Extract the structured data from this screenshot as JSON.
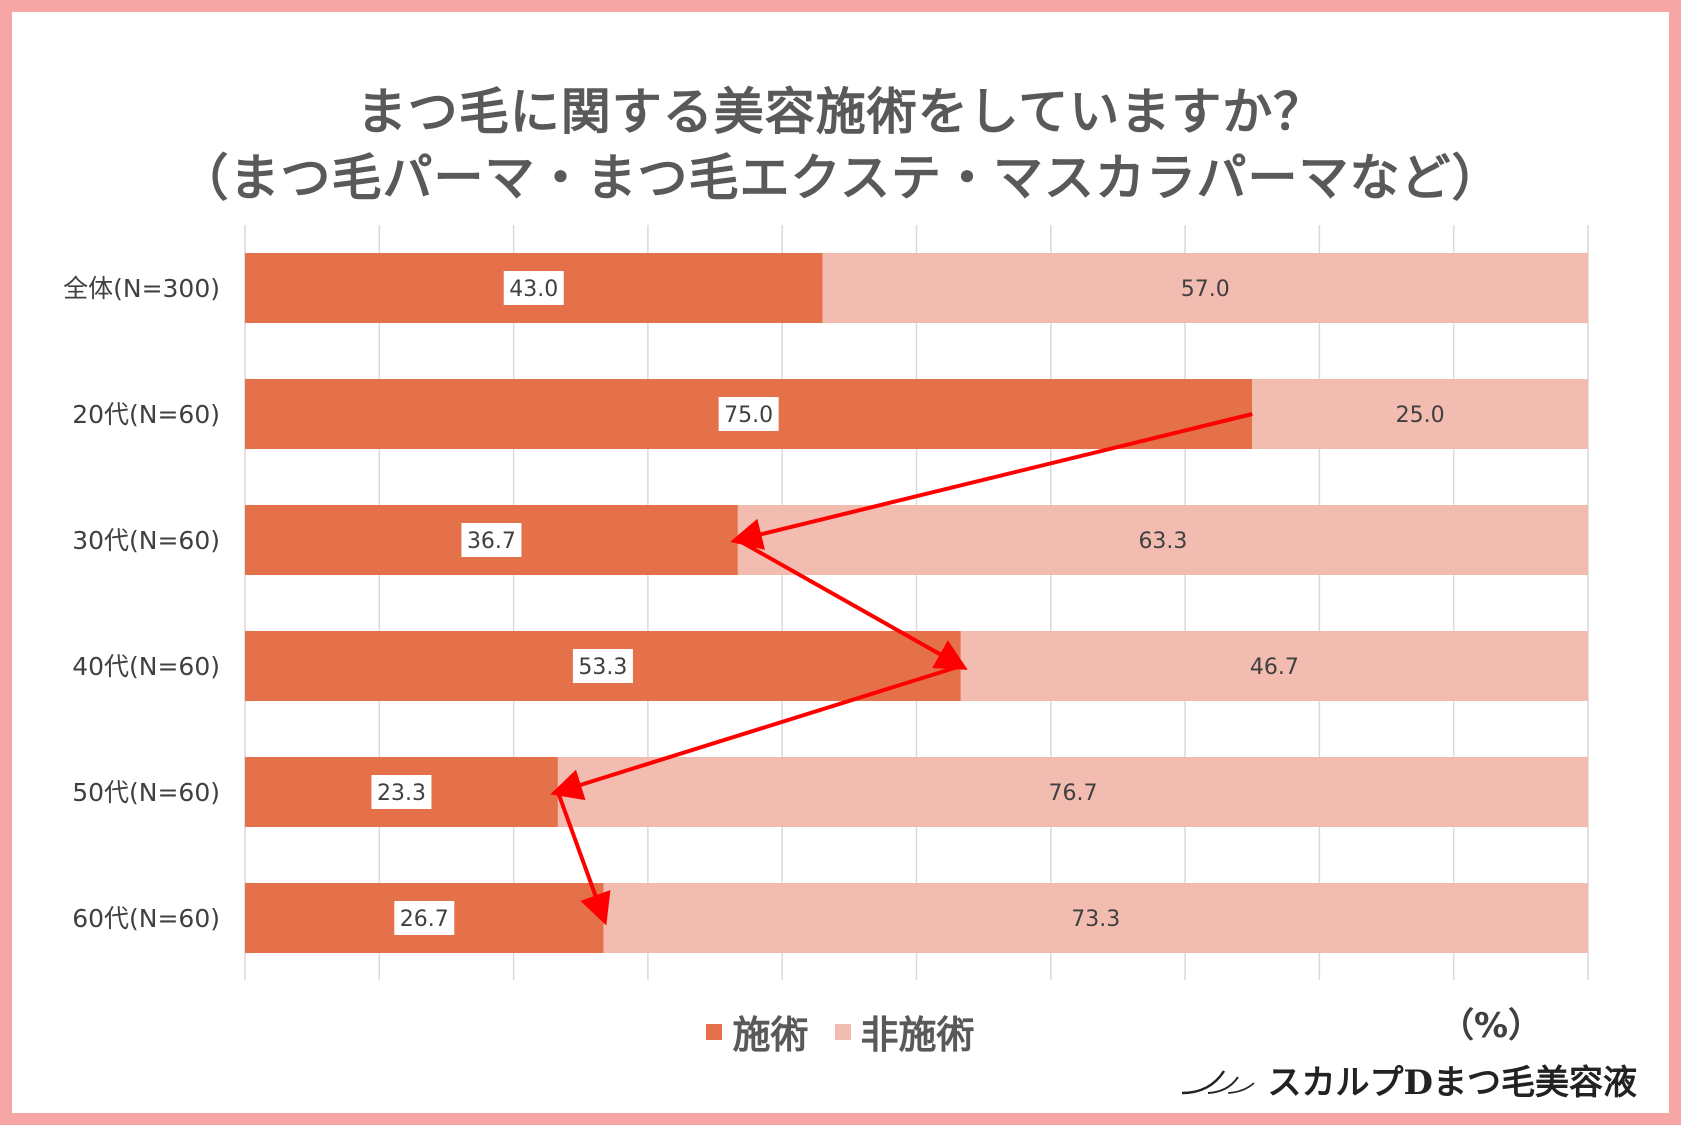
{
  "chart_data": {
    "type": "bar",
    "orientation": "horizontal",
    "stacked": true,
    "title": "まつ毛に関する美容施術をしていますか？",
    "subtitle": "（まつ毛パーマ・まつ毛エクステ・マスカラパーマなど）",
    "unit_label": "（%）",
    "categories": [
      "全体(N=300)",
      "20代(N=60)",
      "30代(N=60)",
      "40代(N=60)",
      "50代(N=60)",
      "60代(N=60)"
    ],
    "series": [
      {
        "name": "施術",
        "color": "#e5714a",
        "values": [
          43.0,
          75.0,
          36.7,
          53.3,
          23.3,
          26.7
        ]
      },
      {
        "name": "非施術",
        "color": "#f2bcb0",
        "values": [
          57.0,
          25.0,
          63.3,
          46.7,
          76.7,
          73.3
        ]
      }
    ],
    "xlim": [
      0,
      100
    ],
    "grid": true,
    "legend_position": "bottom",
    "annotation": "red arrows connecting the ends of the 施術 bars from 20代 down to 60代",
    "arrow_color": "#ff0000"
  },
  "brand": {
    "text": "スカルプDまつ毛美容液",
    "icon": "eyelash-logo-icon"
  }
}
